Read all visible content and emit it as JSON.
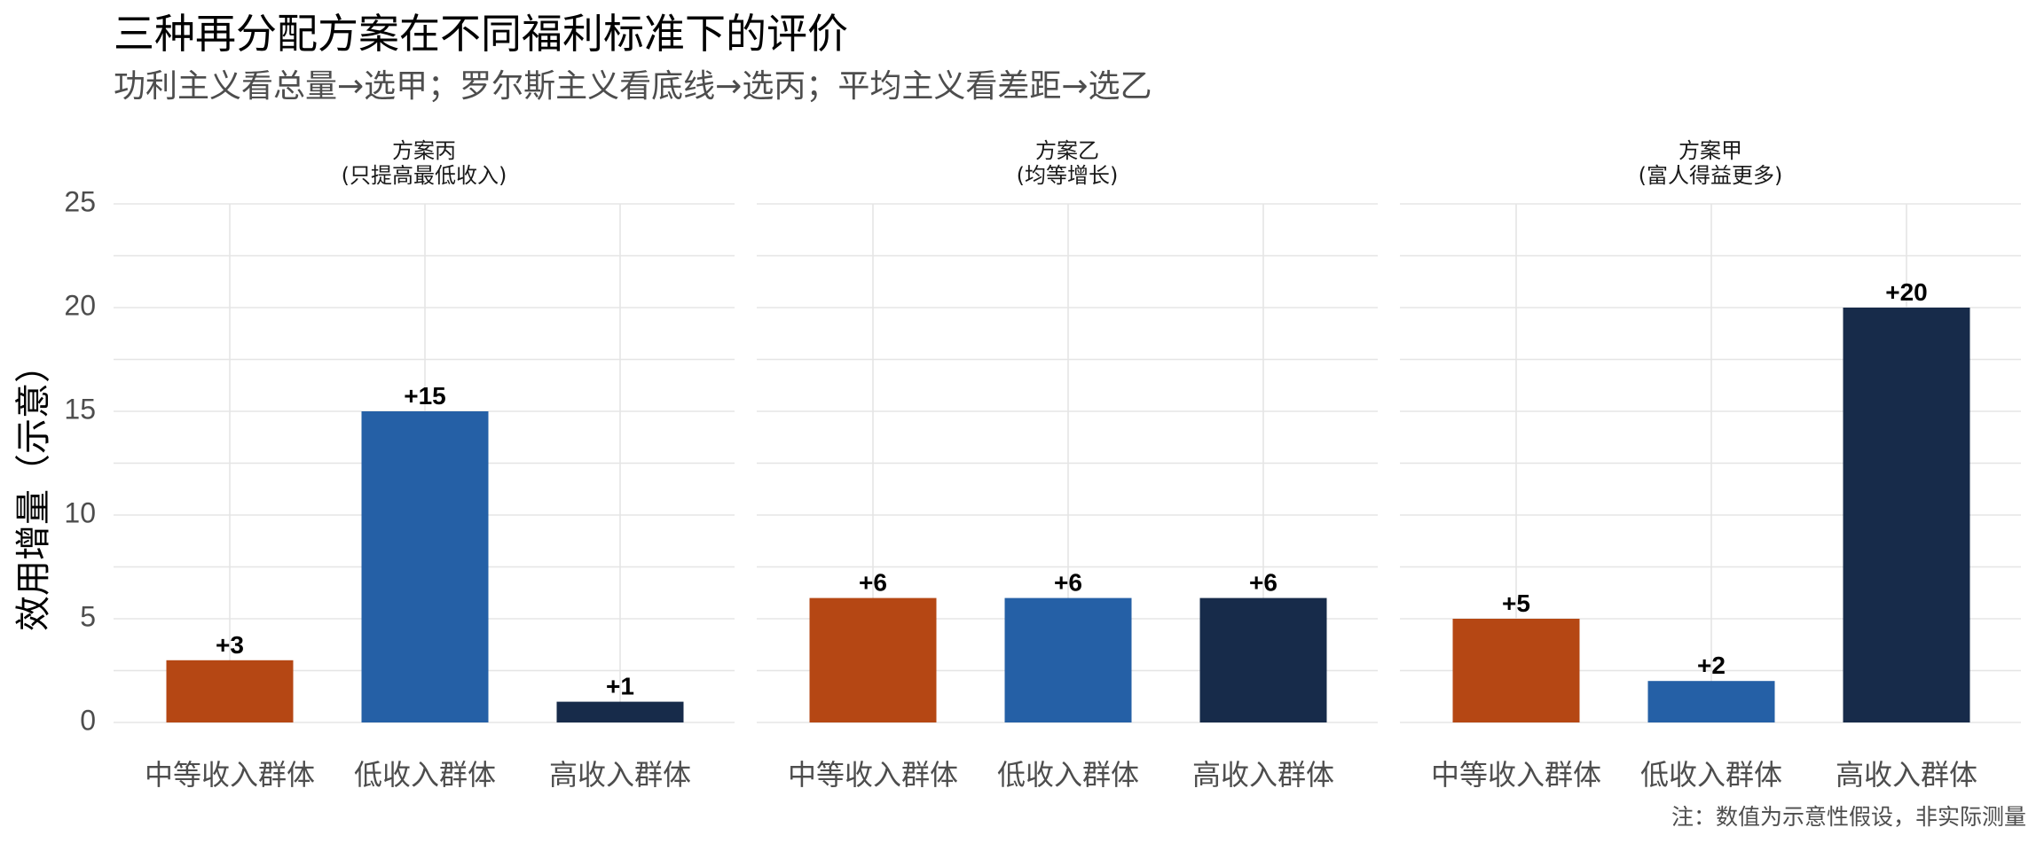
{
  "chart_data": {
    "type": "bar",
    "title": "三种再分配方案在不同福利标准下的评价",
    "subtitle": "功利主义看总量→选甲；罗尔斯主义看底线→选丙；平均主义看差距→选乙",
    "caption": "注：数值为示意性假设，非实际测量",
    "ylabel": "效用增量（示意）",
    "xlabel": "",
    "ylim": [
      0,
      25
    ],
    "yticks": [
      0,
      5,
      10,
      15,
      20,
      25
    ],
    "grid": true,
    "categories": [
      "中等收入群体",
      "低收入群体",
      "高收入群体"
    ],
    "category_colors": [
      "#b54714",
      "#2560a6",
      "#172b4a"
    ],
    "panels": [
      {
        "title_line1": "方案丙",
        "title_line2": "(只提高最低收入)",
        "values": [
          3,
          15,
          1
        ],
        "labels": [
          "+3",
          "+15",
          "+1"
        ]
      },
      {
        "title_line1": "方案乙",
        "title_line2": "(均等增长)",
        "values": [
          6,
          6,
          6
        ],
        "labels": [
          "+6",
          "+6",
          "+6"
        ]
      },
      {
        "title_line1": "方案甲",
        "title_line2": "(富人得益更多)",
        "values": [
          5,
          2,
          20
        ],
        "labels": [
          "+5",
          "+2",
          "+20"
        ]
      }
    ]
  }
}
